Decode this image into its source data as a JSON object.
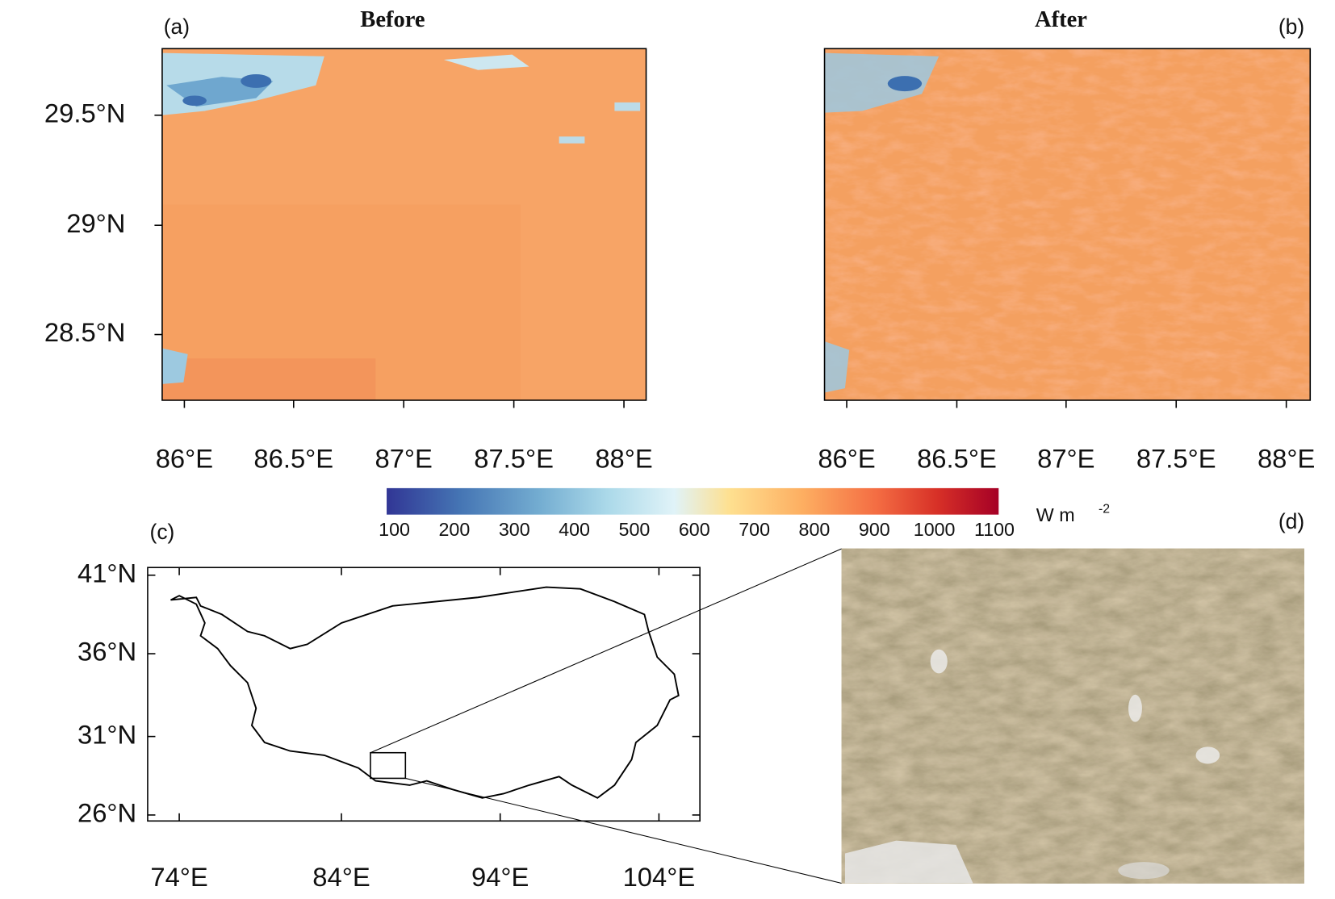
{
  "panels": [
    {
      "label": "(a)",
      "title": "Before",
      "xticks": [
        "86°E",
        "86.5°E",
        "87°E",
        "87.5°E",
        "88°E"
      ],
      "yticks": [
        "29.5°N",
        "29°N",
        "28.5°N"
      ]
    },
    {
      "label": "(b)",
      "title": "After",
      "xticks": [
        "86°E",
        "86.5°E",
        "87°E",
        "87.5°E",
        "88°E"
      ]
    },
    {
      "label": "(c)",
      "xticks": [
        "74°E",
        "84°E",
        "94°E",
        "104°E"
      ],
      "yticks": [
        "41°N",
        "36°N",
        "31°N",
        "26°N"
      ]
    },
    {
      "label": "(d)"
    }
  ],
  "colorbar": {
    "ticks": [
      100,
      200,
      300,
      400,
      500,
      600,
      700,
      800,
      900,
      1000,
      1100
    ],
    "unit": "W m",
    "unit_exponent": "-2"
  }
}
